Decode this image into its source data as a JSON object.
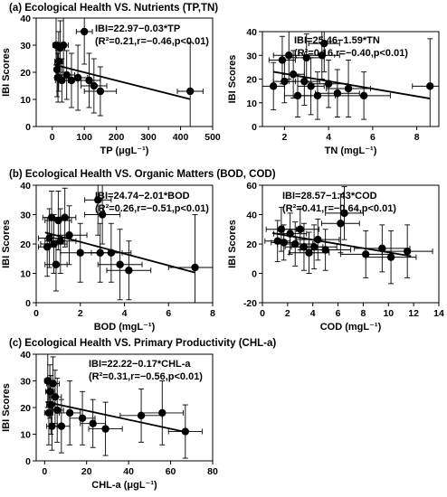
{
  "sections": [
    {
      "title": "(a) Ecological Health VS. Nutrients (TP,TN)"
    },
    {
      "title": "(b) Ecological Health VS. Organic Matters (BOD, COD)"
    },
    {
      "title": "(c) Ecological Health VS. Primary Productivity (CHL-a)"
    }
  ],
  "chart_data": [
    {
      "type": "scatter",
      "id": "tp",
      "xlabel": "TP (μgL⁻¹)",
      "ylabel": "IBI Scores",
      "xlim": [
        -50,
        500
      ],
      "ylim": [
        0,
        40
      ],
      "xticks": [
        0,
        100,
        200,
        300,
        400,
        500
      ],
      "yticks": [
        0,
        10,
        20,
        30,
        40
      ],
      "equation": "IBI=22.97−0.03*TP",
      "stats": "(R²=0.21,r=−0.46,p<0.01)",
      "fit": {
        "intercept": 22.97,
        "slope": -0.03,
        "x_range": [
          5,
          430
        ]
      },
      "points": [
        {
          "x": 12,
          "y": 30,
          "xerr": 10,
          "yerr": 12
        },
        {
          "x": 15,
          "y": 21,
          "xerr": 8,
          "yerr": 10
        },
        {
          "x": 18,
          "y": 18,
          "xerr": 10,
          "yerr": 9
        },
        {
          "x": 20,
          "y": 24,
          "xerr": 12,
          "yerr": 11
        },
        {
          "x": 25,
          "y": 29,
          "xerr": 14,
          "yerr": 10
        },
        {
          "x": 30,
          "y": 17,
          "xerr": 20,
          "yerr": 8
        },
        {
          "x": 35,
          "y": 30,
          "xerr": 15,
          "yerr": 10
        },
        {
          "x": 45,
          "y": 19,
          "xerr": 25,
          "yerr": 9
        },
        {
          "x": 60,
          "y": 17,
          "xerr": 30,
          "yerr": 10
        },
        {
          "x": 80,
          "y": 18,
          "xerr": 30,
          "yerr": 12
        },
        {
          "x": 100,
          "y": 35,
          "xerr": 25,
          "yerr": 12
        },
        {
          "x": 115,
          "y": 17,
          "xerr": 35,
          "yerr": 10
        },
        {
          "x": 130,
          "y": 15,
          "xerr": 40,
          "yerr": 10
        },
        {
          "x": 150,
          "y": 13,
          "xerr": 50,
          "yerr": 9
        },
        {
          "x": 430,
          "y": 13,
          "xerr": 40,
          "yerr": 18
        }
      ]
    },
    {
      "type": "scatter",
      "id": "tn",
      "xlabel": "TN (mgL⁻¹)",
      "ylabel": "IBI Scores",
      "xlim": [
        1,
        9
      ],
      "ylim": [
        0,
        40
      ],
      "xticks": [
        2,
        4,
        6,
        8
      ],
      "yticks": [
        0,
        10,
        20,
        30,
        40
      ],
      "equation": "IBI=25.46−1.59*TN",
      "stats": "(R²=0.16,r=−0.40,p<0.01)",
      "fit": {
        "intercept": 25.46,
        "slope": -1.59,
        "x_range": [
          1.5,
          8.6
        ]
      },
      "points": [
        {
          "x": 1.5,
          "y": 17,
          "xerr": 0.5,
          "yerr": 10
        },
        {
          "x": 1.9,
          "y": 28,
          "xerr": 0.6,
          "yerr": 10
        },
        {
          "x": 2.0,
          "y": 19,
          "xerr": 0.5,
          "yerr": 9
        },
        {
          "x": 2.2,
          "y": 30,
          "xerr": 0.7,
          "yerr": 10
        },
        {
          "x": 2.4,
          "y": 22,
          "xerr": 0.5,
          "yerr": 10
        },
        {
          "x": 2.6,
          "y": 13,
          "xerr": 0.6,
          "yerr": 9
        },
        {
          "x": 2.9,
          "y": 19,
          "xerr": 0.7,
          "yerr": 10
        },
        {
          "x": 3.0,
          "y": 29,
          "xerr": 0.8,
          "yerr": 10
        },
        {
          "x": 3.2,
          "y": 17,
          "xerr": 0.6,
          "yerr": 12
        },
        {
          "x": 3.5,
          "y": 13,
          "xerr": 0.8,
          "yerr": 10
        },
        {
          "x": 3.7,
          "y": 30,
          "xerr": 0.8,
          "yerr": 10
        },
        {
          "x": 3.8,
          "y": 35,
          "xerr": 0.7,
          "yerr": 12
        },
        {
          "x": 4.0,
          "y": 18,
          "xerr": 0.9,
          "yerr": 10
        },
        {
          "x": 4.4,
          "y": 14,
          "xerr": 1.0,
          "yerr": 10
        },
        {
          "x": 4.9,
          "y": 16,
          "xerr": 1.0,
          "yerr": 12
        },
        {
          "x": 5.6,
          "y": 13,
          "xerr": 1.2,
          "yerr": 10
        },
        {
          "x": 8.6,
          "y": 17,
          "xerr": 0.8,
          "yerr": 20
        }
      ]
    },
    {
      "type": "scatter",
      "id": "bod",
      "xlabel": "BOD (mgL⁻¹)",
      "ylabel": "IBI Scores",
      "xlim": [
        0,
        8
      ],
      "ylim": [
        0,
        40
      ],
      "xticks": [
        0,
        2,
        4,
        6,
        8
      ],
      "yticks": [
        0,
        10,
        20,
        30,
        40
      ],
      "equation": "IBI=24.74−2.01*BOD",
      "stats": "(R²=0.26,r=−0.51,p<0.01)",
      "fit": {
        "intercept": 24.74,
        "slope": -2.01,
        "x_range": [
          0.4,
          7.2
        ]
      },
      "points": [
        {
          "x": 0.5,
          "y": 19,
          "xerr": 0.4,
          "yerr": 10
        },
        {
          "x": 0.6,
          "y": 22,
          "xerr": 0.5,
          "yerr": 10
        },
        {
          "x": 0.7,
          "y": 29,
          "xerr": 0.4,
          "yerr": 9
        },
        {
          "x": 0.8,
          "y": 20,
          "xerr": 0.6,
          "yerr": 10
        },
        {
          "x": 0.9,
          "y": 13,
          "xerr": 0.5,
          "yerr": 9
        },
        {
          "x": 1.0,
          "y": 28,
          "xerr": 0.6,
          "yerr": 10
        },
        {
          "x": 1.1,
          "y": 21,
          "xerr": 0.7,
          "yerr": 11
        },
        {
          "x": 1.3,
          "y": 29,
          "xerr": 0.5,
          "yerr": 10
        },
        {
          "x": 1.5,
          "y": 23,
          "xerr": 0.8,
          "yerr": 10
        },
        {
          "x": 2.0,
          "y": 17,
          "xerr": 0.9,
          "yerr": 10
        },
        {
          "x": 2.8,
          "y": 35,
          "xerr": 0.6,
          "yerr": 12
        },
        {
          "x": 2.9,
          "y": 17,
          "xerr": 1.0,
          "yerr": 10
        },
        {
          "x": 3.0,
          "y": 30,
          "xerr": 0.8,
          "yerr": 10
        },
        {
          "x": 3.4,
          "y": 17,
          "xerr": 0.9,
          "yerr": 10
        },
        {
          "x": 3.8,
          "y": 13,
          "xerr": 1.0,
          "yerr": 12
        },
        {
          "x": 4.2,
          "y": 11,
          "xerr": 1.0,
          "yerr": 10
        },
        {
          "x": 7.2,
          "y": 12,
          "xerr": 1.2,
          "yerr": 18
        }
      ]
    },
    {
      "type": "scatter",
      "id": "cod",
      "xlabel": "COD (mgL⁻¹)",
      "ylabel": "IBI Scores",
      "xlim": [
        0,
        14
      ],
      "ylim": [
        -20,
        60
      ],
      "xticks": [
        0,
        2,
        4,
        6,
        8,
        10,
        12,
        14
      ],
      "yticks": [
        -20,
        0,
        20,
        40,
        60
      ],
      "equation": "IBI=28.57−1.43*COD",
      "stats": "(R²=0.41,r=−0.64,p<0.01)",
      "fit": {
        "intercept": 28.57,
        "slope": -1.43,
        "x_range": [
          0.8,
          11.8
        ]
      },
      "points": [
        {
          "x": 1.2,
          "y": 22,
          "xerr": 1.0,
          "yerr": 14
        },
        {
          "x": 1.5,
          "y": 30,
          "xerr": 1.2,
          "yerr": 15
        },
        {
          "x": 1.7,
          "y": 21,
          "xerr": 1.0,
          "yerr": 12
        },
        {
          "x": 2.2,
          "y": 27,
          "xerr": 1.3,
          "yerr": 14
        },
        {
          "x": 2.6,
          "y": 20,
          "xerr": 1.4,
          "yerr": 15
        },
        {
          "x": 3.0,
          "y": 30,
          "xerr": 1.5,
          "yerr": 14
        },
        {
          "x": 3.3,
          "y": 18,
          "xerr": 1.5,
          "yerr": 16
        },
        {
          "x": 3.7,
          "y": 14,
          "xerr": 1.6,
          "yerr": 14
        },
        {
          "x": 4.1,
          "y": 18,
          "xerr": 1.8,
          "yerr": 15
        },
        {
          "x": 4.4,
          "y": 23,
          "xerr": 1.7,
          "yerr": 14
        },
        {
          "x": 5.0,
          "y": 16,
          "xerr": 2.0,
          "yerr": 14
        },
        {
          "x": 6.2,
          "y": 34,
          "xerr": 1.5,
          "yerr": 20
        },
        {
          "x": 6.5,
          "y": 41,
          "xerr": 1.5,
          "yerr": 18
        },
        {
          "x": 8.2,
          "y": 13,
          "xerr": 2.0,
          "yerr": 16
        },
        {
          "x": 9.5,
          "y": 17,
          "xerr": 2.2,
          "yerr": 16
        },
        {
          "x": 10.2,
          "y": 11,
          "xerr": 2.0,
          "yerr": 18
        },
        {
          "x": 11.5,
          "y": 15,
          "xerr": 2.0,
          "yerr": 18
        }
      ]
    },
    {
      "type": "scatter",
      "id": "chla",
      "xlabel": "CHL-a (μgL⁻¹)",
      "ylabel": "IBI Scores",
      "xlim": [
        -4,
        80
      ],
      "ylim": [
        0,
        40
      ],
      "xticks": [
        0,
        20,
        40,
        60,
        80
      ],
      "yticks": [
        0,
        10,
        20,
        30,
        40
      ],
      "equation": "IBI=22.22−0.17*CHL-a",
      "stats": "(R²=0.31,r=−0.56,p<0.01)",
      "fit": {
        "intercept": 22.22,
        "slope": -0.17,
        "x_range": [
          0.5,
          68
        ]
      },
      "points": [
        {
          "x": 1.5,
          "y": 30,
          "xerr": 1.5,
          "yerr": 10
        },
        {
          "x": 2.0,
          "y": 18,
          "xerr": 2,
          "yerr": 12
        },
        {
          "x": 2.5,
          "y": 26,
          "xerr": 2,
          "yerr": 10
        },
        {
          "x": 3.0,
          "y": 21,
          "xerr": 2,
          "yerr": 11
        },
        {
          "x": 3.5,
          "y": 13,
          "xerr": 2.5,
          "yerr": 9
        },
        {
          "x": 4.0,
          "y": 29,
          "xerr": 3,
          "yerr": 10
        },
        {
          "x": 5.0,
          "y": 24,
          "xerr": 3,
          "yerr": 10
        },
        {
          "x": 6.0,
          "y": 19,
          "xerr": 3,
          "yerr": 12
        },
        {
          "x": 8.0,
          "y": 13,
          "xerr": 4,
          "yerr": 10
        },
        {
          "x": 12.0,
          "y": 18,
          "xerr": 5,
          "yerr": 12
        },
        {
          "x": 18.0,
          "y": 16,
          "xerr": 6,
          "yerr": 10
        },
        {
          "x": 23.0,
          "y": 14,
          "xerr": 6,
          "yerr": 9
        },
        {
          "x": 29.0,
          "y": 12,
          "xerr": 8,
          "yerr": 10
        },
        {
          "x": 46.0,
          "y": 17,
          "xerr": 10,
          "yerr": 10
        },
        {
          "x": 56.0,
          "y": 18,
          "xerr": 10,
          "yerr": 12
        },
        {
          "x": 67.0,
          "y": 11,
          "xerr": 8,
          "yerr": 10
        }
      ]
    }
  ]
}
